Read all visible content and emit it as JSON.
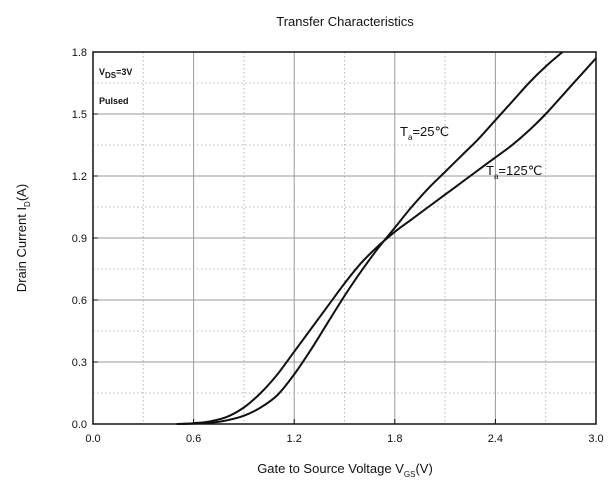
{
  "chart_data": {
    "type": "line",
    "title": "Transfer Characteristics",
    "xlabel_main": "Gate to Source Voltage V",
    "xlabel_sub": "GS",
    "xlabel_unit": "(V)",
    "ylabel_main": "Drain Current I",
    "ylabel_sub": "D",
    "ylabel_unit": "(A)",
    "xlim": [
      0.0,
      3.0
    ],
    "ylim": [
      0.0,
      1.8
    ],
    "xticks": [
      0.0,
      0.6,
      1.2,
      1.8,
      2.4,
      3.0
    ],
    "xtick_labels": [
      "0.0",
      "0.6",
      "1.2",
      "1.8",
      "2.4",
      "3.0"
    ],
    "yticks": [
      0.0,
      0.3,
      0.6,
      0.9,
      1.2,
      1.5,
      1.8
    ],
    "ytick_labels": [
      "0.0",
      "0.3",
      "0.6",
      "0.9",
      "1.2",
      "1.5",
      "1.8"
    ],
    "grid": true,
    "annotations": {
      "line1_main": "V",
      "line1_sub": "DS",
      "line1_rest": "=3V",
      "line2": "Pulsed"
    },
    "series": [
      {
        "name_main": "T",
        "name_sub": "a",
        "name_rest": "=25℃",
        "x": [
          0.5,
          0.6,
          0.7,
          0.8,
          0.9,
          1.0,
          1.1,
          1.2,
          1.3,
          1.4,
          1.5,
          1.6,
          1.7,
          1.8,
          1.9,
          2.0,
          2.1,
          2.2,
          2.3,
          2.4,
          2.5,
          2.6,
          2.7,
          2.8
        ],
        "y": [
          0.0,
          0.002,
          0.006,
          0.018,
          0.04,
          0.08,
          0.14,
          0.24,
          0.36,
          0.49,
          0.62,
          0.74,
          0.85,
          0.95,
          1.05,
          1.14,
          1.22,
          1.3,
          1.38,
          1.47,
          1.56,
          1.65,
          1.73,
          1.8
        ]
      },
      {
        "name_main": "T",
        "name_sub": "a",
        "name_rest": "=125℃",
        "x": [
          0.5,
          0.6,
          0.7,
          0.8,
          0.9,
          1.0,
          1.1,
          1.2,
          1.3,
          1.4,
          1.5,
          1.6,
          1.7,
          1.8,
          1.9,
          2.0,
          2.1,
          2.2,
          2.3,
          2.4,
          2.5,
          2.6,
          2.7,
          2.8,
          2.9,
          3.0
        ],
        "y": [
          0.0,
          0.004,
          0.013,
          0.035,
          0.08,
          0.15,
          0.24,
          0.35,
          0.46,
          0.57,
          0.68,
          0.78,
          0.86,
          0.93,
          0.99,
          1.05,
          1.11,
          1.17,
          1.23,
          1.29,
          1.35,
          1.42,
          1.5,
          1.59,
          1.68,
          1.77
        ]
      }
    ]
  }
}
